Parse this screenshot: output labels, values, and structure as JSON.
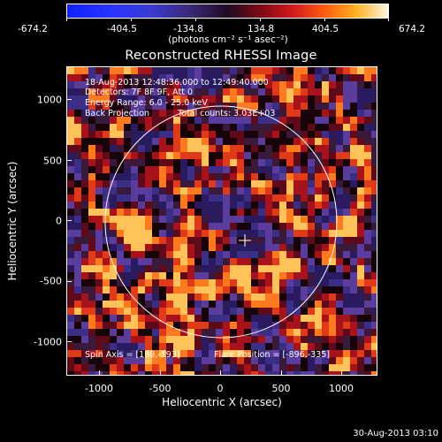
{
  "colorbar": {
    "ticks": [
      "-674.2",
      "-404.5",
      "-134.8",
      "134.8",
      "404.5",
      "674.2"
    ],
    "units": "(photons cm⁻² s⁻¹ asec⁻²)"
  },
  "plot": {
    "title": "Reconstructed RHESSI Image",
    "info_lines": [
      "18-Aug-2013 12:48:36.000 to 12:49:40.000",
      "Detectors: 7F 8F 9F, Att 0",
      "Energy Range: 6.0 - 25.0 keV",
      "Back Projection"
    ],
    "total_counts": "Total counts: 3.03E+03",
    "spin_axis": "Spin Axis = [188,-193]",
    "flare_position": "Flare Position = [-896,-335]",
    "xlabel": "Heliocentric X (arcsec)",
    "ylabel": "Heliocentric Y (arcsec)",
    "xticks": [
      "-1000",
      "-500",
      "0",
      "500",
      "1000"
    ],
    "yticks": [
      "1000",
      "500",
      "0",
      "-500",
      "-1000"
    ]
  },
  "footer": {
    "date": "30-Aug-2013 03:10"
  }
}
